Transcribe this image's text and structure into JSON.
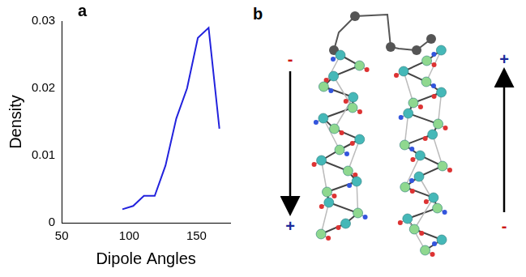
{
  "panel_labels": [
    "a",
    "b"
  ],
  "chart_data": {
    "type": "line",
    "x_label": "Dipole Angles",
    "y_label": "Density",
    "x": [
      95,
      103,
      111,
      119,
      127,
      135,
      143,
      151,
      159,
      167
    ],
    "values": [
      0.002,
      0.0025,
      0.004,
      0.004,
      0.0085,
      0.0155,
      0.02,
      0.0275,
      0.029,
      0.014
    ],
    "color": "#2222dd",
    "xlim": [
      50,
      175
    ],
    "xticks": [
      50,
      100,
      150
    ],
    "ylim": [
      0,
      0.03
    ],
    "yticks": [
      0,
      0.01,
      0.02,
      0.03
    ],
    "grid": false
  },
  "diagram": {
    "arrows": [
      {
        "top": "-",
        "bottom": "+",
        "direction": "down"
      },
      {
        "top": "+",
        "bottom": "-",
        "direction": "up"
      }
    ]
  }
}
